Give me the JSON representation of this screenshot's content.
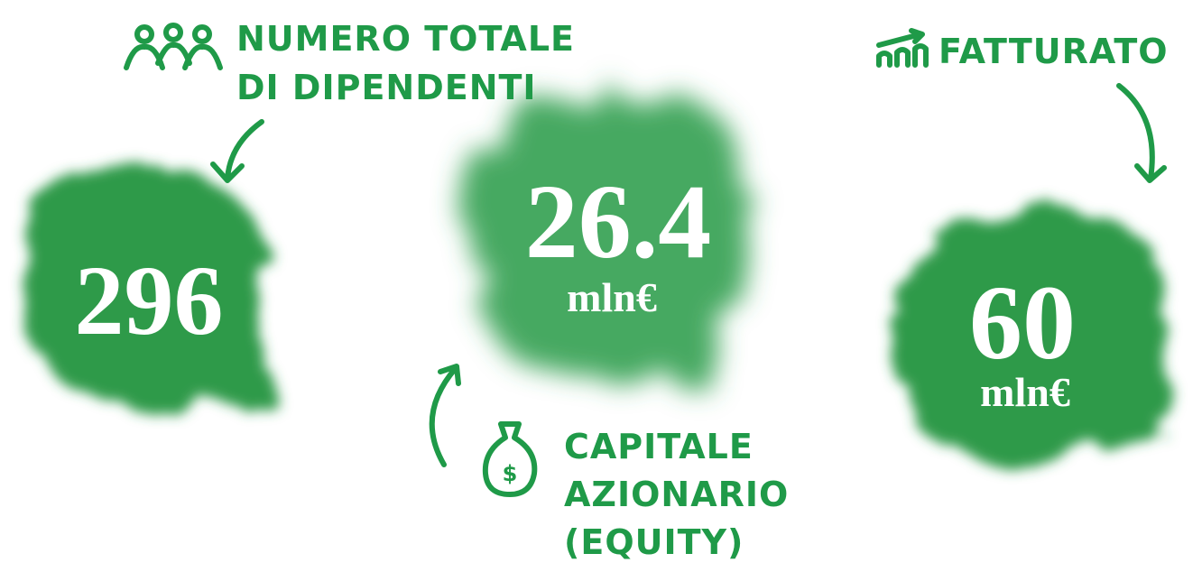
{
  "stats": [
    {
      "label": [
        "NUMERO TOTALE",
        "DI DIPENDENTI"
      ],
      "value": 296
    },
    {
      "label": [
        "CAPITALE",
        "AZIONARIO",
        "(EQUITY)"
      ],
      "value": 26.4,
      "unit": "mln€"
    },
    {
      "label": [
        "FATTURATO"
      ],
      "value": 60,
      "unit": "mln€"
    }
  ]
}
